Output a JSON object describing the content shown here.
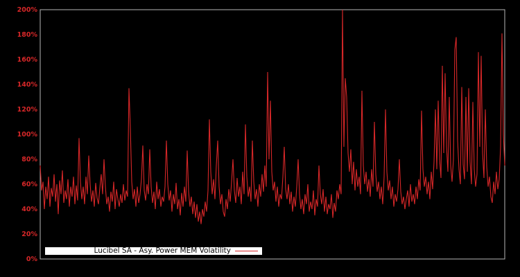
{
  "colors": {
    "background": "#000000",
    "axis_border": "#b9b9b9",
    "line": "#d62728",
    "tick_label": "#d62728",
    "legend_bg": "#ffffff",
    "legend_border": "#000000",
    "legend_text": "#000000"
  },
  "chart_data": {
    "type": "line",
    "title": "",
    "xlabel": "",
    "ylabel": "",
    "grid": false,
    "x_axis_tick_labels_visible": false,
    "ylim_pct": [
      0,
      200
    ],
    "yticks": [
      {
        "value_pct": 0,
        "label": "0%"
      },
      {
        "value_pct": 20,
        "label": "20%"
      },
      {
        "value_pct": 40,
        "label": "40%"
      },
      {
        "value_pct": 60,
        "label": "60%"
      },
      {
        "value_pct": 80,
        "label": "80%"
      },
      {
        "value_pct": 100,
        "label": "100%"
      },
      {
        "value_pct": 120,
        "label": "120%"
      },
      {
        "value_pct": 140,
        "label": "140%"
      },
      {
        "value_pct": 160,
        "label": "160%"
      },
      {
        "value_pct": 180,
        "label": "180%"
      },
      {
        "value_pct": 200,
        "label": "200%"
      }
    ],
    "legend_position": "inside-bottom-left, label before line sample",
    "series": [
      {
        "name": "Lucibel SA - Asy. Power MEM Volatility",
        "color": "#d62728",
        "unit": "%",
        "values_pct": [
          75,
          55,
          62,
          40,
          58,
          48,
          66,
          42,
          57,
          50,
          68,
          46,
          60,
          36,
          63,
          52,
          71,
          45,
          55,
          48,
          64,
          42,
          58,
          50,
          66,
          44,
          59,
          47,
          97,
          62,
          48,
          58,
          44,
          66,
          52,
          83,
          60,
          46,
          55,
          42,
          61,
          49,
          44,
          57,
          68,
          52,
          80,
          58,
          44,
          50,
          38,
          54,
          46,
          62,
          40,
          56,
          48,
          42,
          52,
          45,
          60,
          47,
          55,
          50,
          137,
          105,
          62,
          48,
          56,
          42,
          58,
          45,
          52,
          64,
          91,
          55,
          47,
          60,
          52,
          88,
          58,
          45,
          54,
          40,
          62,
          48,
          56,
          42,
          50,
          46,
          58,
          95,
          60,
          47,
          55,
          38,
          52,
          44,
          61,
          40,
          48,
          35,
          53,
          42,
          58,
          46,
          87,
          54,
          42,
          50,
          36,
          46,
          33,
          44,
          30,
          38,
          28,
          40,
          34,
          46,
          38,
          55,
          112,
          70,
          52,
          64,
          48,
          75,
          95,
          58,
          44,
          52,
          38,
          34,
          48,
          40,
          56,
          46,
          62,
          80,
          55,
          45,
          65,
          50,
          58,
          44,
          70,
          52,
          108,
          66,
          50,
          58,
          46,
          95,
          62,
          48,
          56,
          42,
          60,
          50,
          68,
          54,
          75,
          58,
          150,
          80,
          127,
          70,
          55,
          62,
          46,
          58,
          42,
          52,
          48,
          66,
          90,
          56,
          48,
          60,
          44,
          54,
          38,
          50,
          42,
          58,
          80,
          52,
          40,
          48,
          36,
          52,
          44,
          60,
          38,
          46,
          40,
          55,
          35,
          48,
          42,
          75,
          52,
          44,
          56,
          38,
          50,
          36,
          44,
          40,
          52,
          33,
          45,
          38,
          55,
          48,
          60,
          52,
          200,
          90,
          145,
          130,
          85,
          70,
          88,
          60,
          78,
          55,
          72,
          58,
          66,
          52,
          135,
          75,
          60,
          70,
          54,
          64,
          50,
          72,
          58,
          110,
          68,
          54,
          62,
          48,
          58,
          44,
          66,
          120,
          70,
          55,
          63,
          48,
          58,
          42,
          52,
          46,
          56,
          80,
          54,
          44,
          50,
          40,
          48,
          55,
          42,
          60,
          46,
          52,
          44,
          58,
          48,
          64,
          55,
          119,
          72,
          58,
          66,
          52,
          62,
          48,
          70,
          56,
          78,
          120,
          72,
          127,
          80,
          65,
          155,
          85,
          149,
          90,
          70,
          130,
          75,
          62,
          80,
          168,
          178,
          95,
          72,
          60,
          138,
          76,
          64,
          130,
          70,
          137,
          78,
          60,
          126,
          72,
          58,
          68,
          166,
          90,
          163,
          85,
          65,
          120,
          74,
          58,
          66,
          50,
          45,
          62,
          52,
          70,
          56,
          64,
          90,
          181,
          100,
          75
        ]
      }
    ]
  }
}
